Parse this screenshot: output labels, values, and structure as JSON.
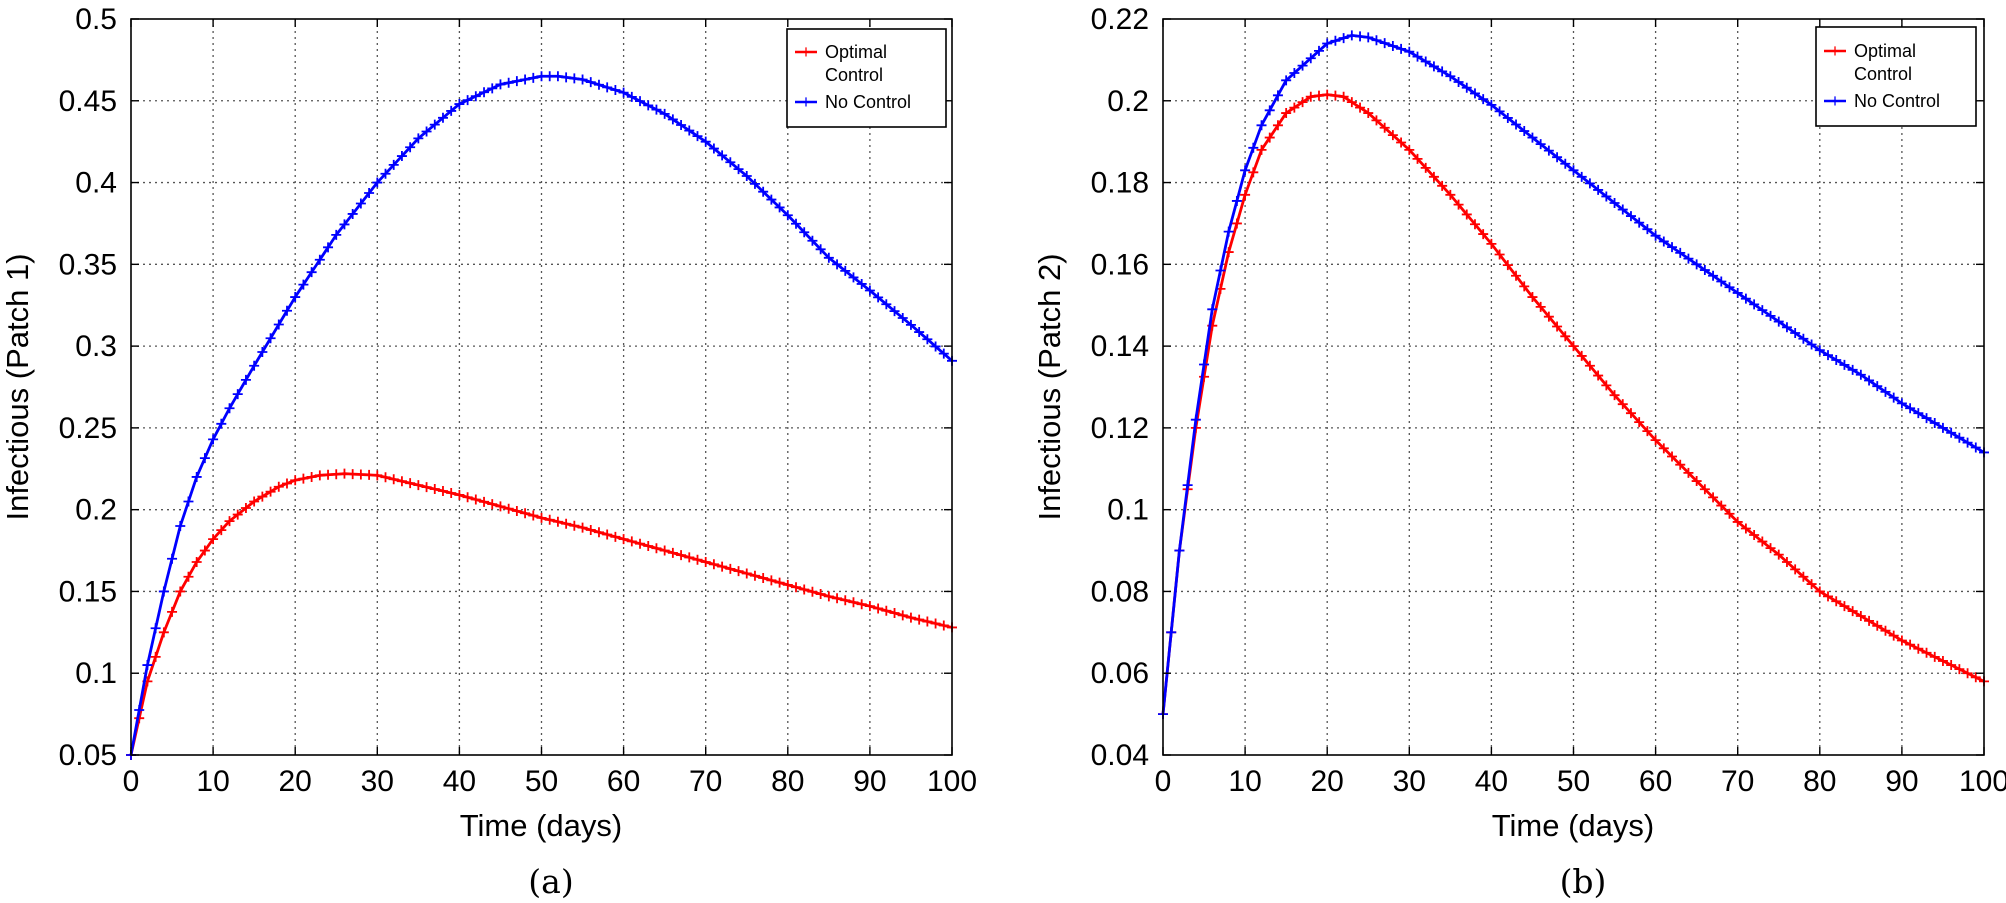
{
  "chart_data": [
    {
      "type": "line",
      "caption": "(a)",
      "xlabel": "Time (days)",
      "ylabel": "Infectious (Patch 1)",
      "xlim": [
        0,
        100
      ],
      "ylim": [
        0.05,
        0.5
      ],
      "xticks": [
        "0",
        "10",
        "20",
        "30",
        "40",
        "50",
        "60",
        "70",
        "80",
        "90",
        "100"
      ],
      "yticks": [
        "0.05",
        "0.1",
        "0.15",
        "0.2",
        "0.25",
        "0.3",
        "0.35",
        "0.4",
        "0.45",
        "0.5"
      ],
      "grid": true,
      "legend_position": "top-right",
      "series": [
        {
          "name": "Optimal Control",
          "legend_lines": [
            "Optimal",
            "Control"
          ],
          "color": "#ff0000",
          "x": [
            0,
            2,
            4,
            6,
            8,
            10,
            12,
            15,
            18,
            20,
            23,
            26,
            30,
            35,
            40,
            45,
            50,
            55,
            60,
            65,
            70,
            75,
            80,
            85,
            90,
            95,
            100
          ],
          "y": [
            0.05,
            0.095,
            0.125,
            0.15,
            0.168,
            0.182,
            0.193,
            0.205,
            0.214,
            0.218,
            0.221,
            0.222,
            0.221,
            0.215,
            0.209,
            0.202,
            0.195,
            0.189,
            0.182,
            0.175,
            0.168,
            0.161,
            0.154,
            0.147,
            0.141,
            0.134,
            0.128
          ]
        },
        {
          "name": "No Control",
          "legend_lines": [
            "No Control"
          ],
          "color": "#0000ff",
          "x": [
            0,
            2,
            4,
            6,
            8,
            10,
            12,
            15,
            20,
            25,
            30,
            35,
            40,
            45,
            50,
            52,
            55,
            60,
            65,
            70,
            75,
            80,
            85,
            90,
            95,
            100
          ],
          "y": [
            0.05,
            0.105,
            0.15,
            0.19,
            0.22,
            0.243,
            0.262,
            0.288,
            0.33,
            0.368,
            0.4,
            0.427,
            0.448,
            0.46,
            0.465,
            0.465,
            0.463,
            0.455,
            0.442,
            0.425,
            0.404,
            0.38,
            0.354,
            0.334,
            0.313,
            0.291
          ]
        }
      ]
    },
    {
      "type": "line",
      "caption": "(b)",
      "xlabel": "Time (days)",
      "ylabel": "Infectious (Patch 2)",
      "xlim": [
        0,
        100
      ],
      "ylim": [
        0.04,
        0.22
      ],
      "xticks": [
        "0",
        "10",
        "20",
        "30",
        "40",
        "50",
        "60",
        "70",
        "80",
        "90",
        "100"
      ],
      "yticks": [
        "0.04",
        "0.06",
        "0.08",
        "0.1",
        "0.12",
        "0.14",
        "0.16",
        "0.18",
        "0.2",
        "0.22"
      ],
      "grid": true,
      "legend_position": "top-right",
      "series": [
        {
          "name": "Optimal Control",
          "legend_lines": [
            "Optimal",
            "Control"
          ],
          "color": "#ff0000",
          "x": [
            0,
            2,
            4,
            6,
            8,
            10,
            12,
            15,
            18,
            20,
            22,
            25,
            30,
            35,
            40,
            45,
            50,
            55,
            60,
            65,
            70,
            75,
            80,
            85,
            90,
            95,
            100
          ],
          "y": [
            0.05,
            0.09,
            0.12,
            0.145,
            0.163,
            0.177,
            0.188,
            0.197,
            0.201,
            0.2015,
            0.201,
            0.197,
            0.188,
            0.177,
            0.165,
            0.152,
            0.14,
            0.128,
            0.117,
            0.107,
            0.097,
            0.089,
            0.08,
            0.074,
            0.068,
            0.063,
            0.058
          ]
        },
        {
          "name": "No Control",
          "legend_lines": [
            "No Control"
          ],
          "color": "#0000ff",
          "x": [
            0,
            2,
            4,
            6,
            8,
            10,
            12,
            15,
            20,
            23,
            25,
            30,
            35,
            40,
            45,
            50,
            55,
            60,
            65,
            70,
            75,
            80,
            85,
            90,
            95,
            100
          ],
          "y": [
            0.05,
            0.09,
            0.122,
            0.149,
            0.168,
            0.183,
            0.194,
            0.205,
            0.214,
            0.216,
            0.2155,
            0.212,
            0.206,
            0.199,
            0.191,
            0.183,
            0.175,
            0.167,
            0.16,
            0.153,
            0.146,
            0.139,
            0.133,
            0.126,
            0.12,
            0.114
          ]
        }
      ]
    }
  ]
}
